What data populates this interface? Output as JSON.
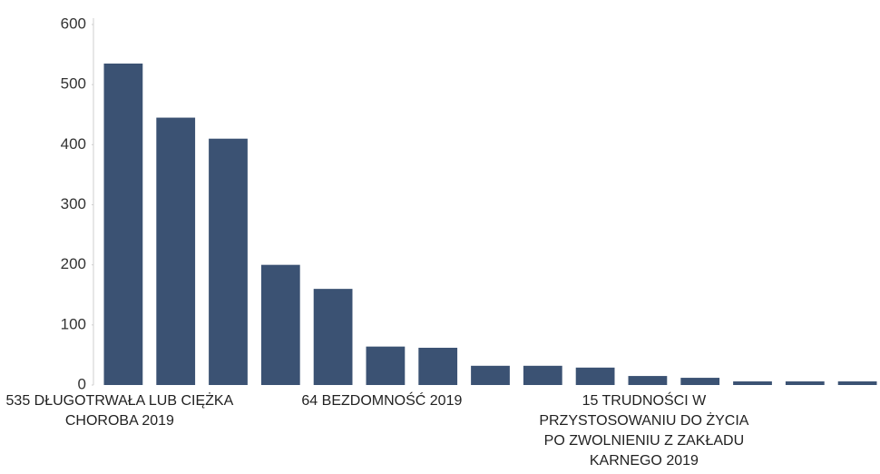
{
  "chart_data": {
    "type": "bar",
    "categories": [
      "535 DŁUGOTRWAŁA LUB CIĘŻKA CHOROBA 2019",
      null,
      null,
      null,
      null,
      "64 BEZDOMNOŚĆ 2019",
      null,
      null,
      null,
      null,
      "15 TRUDNOŚCI W PRZYSTOSOWANIU DO ŻYCIA PO ZWOLNIENIU Z ZAKŁADU KARNEGO 2019",
      null,
      null,
      null,
      null
    ],
    "values": [
      535,
      445,
      410,
      200,
      160,
      64,
      62,
      32,
      32,
      29,
      15,
      12,
      6,
      6,
      6
    ],
    "color": "#3b5273",
    "ylim": [
      0,
      600
    ],
    "yticks": [
      0,
      100,
      200,
      300,
      400,
      500,
      600
    ],
    "grid": false
  }
}
